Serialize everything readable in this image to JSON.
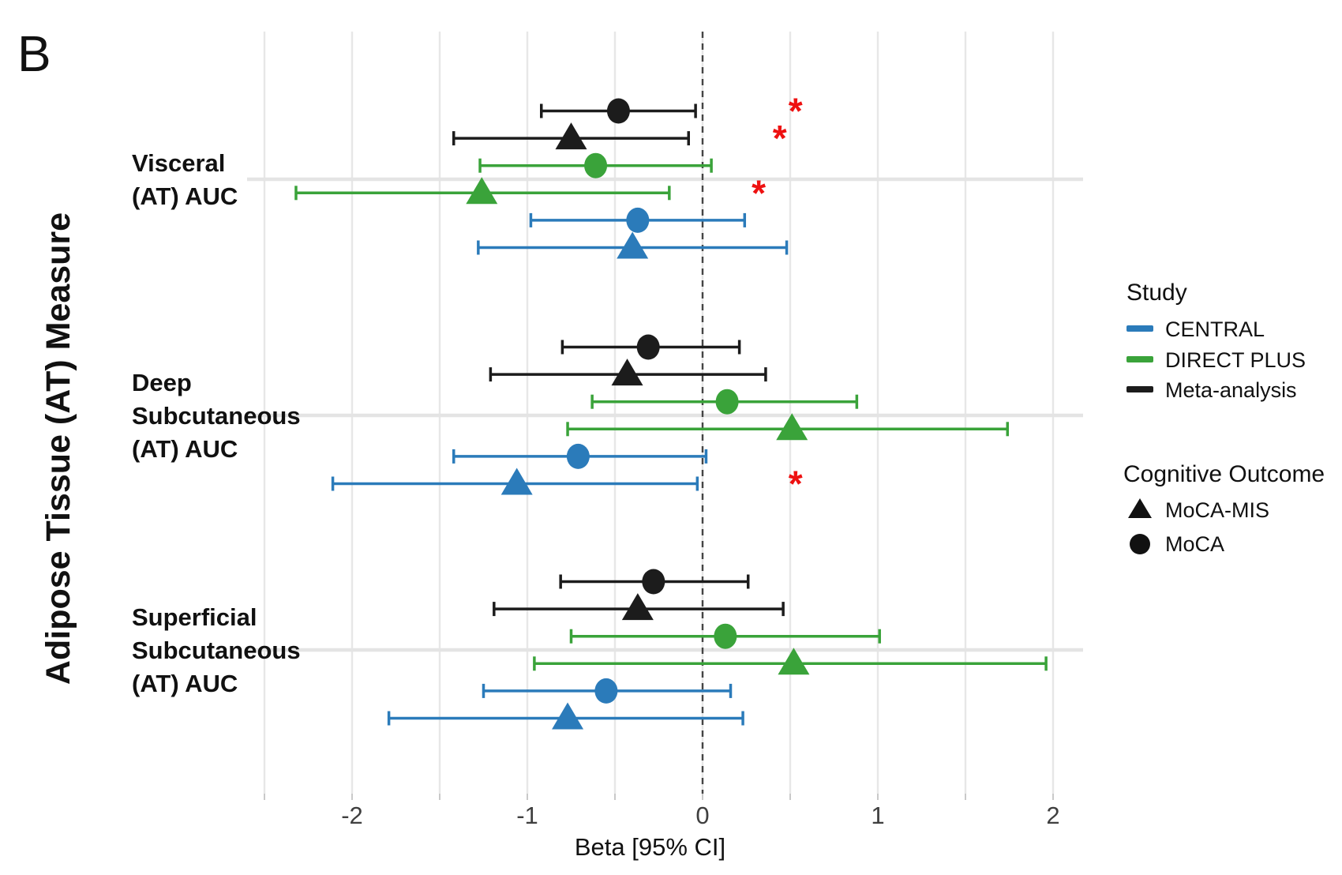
{
  "panel_label": "B",
  "significance_marker": "*",
  "colors": {
    "CENTRAL": "#2b7bba",
    "DIRECT PLUS": "#3aa33a",
    "Meta-analysis": "#1c1c1c",
    "significance": "#ee1111",
    "gridline": "#e7e7e7",
    "zero_line": "#454545",
    "tick_text": "#3f3f3f",
    "text": "#111111"
  },
  "chart_data": {
    "type": "forest",
    "xlabel": "Beta [95% CI]",
    "ylabel": "Adipose Tissue (AT) Measure",
    "xlim": [
      -2.6,
      2.17
    ],
    "x_ticks": [
      -2,
      -1,
      0,
      1,
      2
    ],
    "gridline_step": 0.5,
    "gridline_min": -2.5,
    "gridline_max": 2.0,
    "zero_line": 0,
    "legend": {
      "study_title": "Study",
      "studies": [
        {
          "name": "CENTRAL",
          "color": "#2b7bba"
        },
        {
          "name": "DIRECT PLUS",
          "color": "#3aa33a"
        },
        {
          "name": "Meta-analysis",
          "color": "#1c1c1c"
        }
      ],
      "outcome_title": "Cognitive Outcome",
      "outcomes": [
        {
          "name": "MoCA-MIS",
          "marker": "triangle"
        },
        {
          "name": "MoCA",
          "marker": "circle"
        }
      ]
    },
    "groups": [
      {
        "label_lines": [
          "Visceral",
          "(AT) AUC"
        ],
        "rows": [
          {
            "study": "Meta-analysis",
            "outcome": "MoCA",
            "beta": -0.48,
            "ci": [
              -0.92,
              -0.04
            ],
            "significant": true,
            "sig_x": 0.53
          },
          {
            "study": "Meta-analysis",
            "outcome": "MoCA-MIS",
            "beta": -0.75,
            "ci": [
              -1.42,
              -0.08
            ],
            "significant": true,
            "sig_x": 0.44
          },
          {
            "study": "DIRECT PLUS",
            "outcome": "MoCA",
            "beta": -0.61,
            "ci": [
              -1.27,
              0.05
            ],
            "significant": false
          },
          {
            "study": "DIRECT PLUS",
            "outcome": "MoCA-MIS",
            "beta": -1.26,
            "ci": [
              -2.32,
              -0.19
            ],
            "significant": true,
            "sig_x": 0.32
          },
          {
            "study": "CENTRAL",
            "outcome": "MoCA",
            "beta": -0.37,
            "ci": [
              -0.98,
              0.24
            ],
            "significant": false
          },
          {
            "study": "CENTRAL",
            "outcome": "MoCA-MIS",
            "beta": -0.4,
            "ci": [
              -1.28,
              0.48
            ],
            "significant": false
          }
        ]
      },
      {
        "label_lines": [
          "Deep",
          "Subcutaneous",
          "(AT) AUC"
        ],
        "rows": [
          {
            "study": "Meta-analysis",
            "outcome": "MoCA",
            "beta": -0.31,
            "ci": [
              -0.8,
              0.21
            ],
            "significant": false
          },
          {
            "study": "Meta-analysis",
            "outcome": "MoCA-MIS",
            "beta": -0.43,
            "ci": [
              -1.21,
              0.36
            ],
            "significant": false
          },
          {
            "study": "DIRECT PLUS",
            "outcome": "MoCA",
            "beta": 0.14,
            "ci": [
              -0.63,
              0.88
            ],
            "significant": false
          },
          {
            "study": "DIRECT PLUS",
            "outcome": "MoCA-MIS",
            "beta": 0.51,
            "ci": [
              -0.77,
              1.74
            ],
            "significant": false
          },
          {
            "study": "CENTRAL",
            "outcome": "MoCA",
            "beta": -0.71,
            "ci": [
              -1.42,
              0.02
            ],
            "significant": false
          },
          {
            "study": "CENTRAL",
            "outcome": "MoCA-MIS",
            "beta": -1.06,
            "ci": [
              -2.11,
              -0.03
            ],
            "significant": true,
            "sig_x": 0.53
          }
        ]
      },
      {
        "label_lines": [
          "Superficial",
          "Subcutaneous",
          "(AT) AUC"
        ],
        "rows": [
          {
            "study": "Meta-analysis",
            "outcome": "MoCA",
            "beta": -0.28,
            "ci": [
              -0.81,
              0.26
            ],
            "significant": false
          },
          {
            "study": "Meta-analysis",
            "outcome": "MoCA-MIS",
            "beta": -0.37,
            "ci": [
              -1.19,
              0.46
            ],
            "significant": false
          },
          {
            "study": "DIRECT PLUS",
            "outcome": "MoCA",
            "beta": 0.13,
            "ci": [
              -0.75,
              1.01
            ],
            "significant": false
          },
          {
            "study": "DIRECT PLUS",
            "outcome": "MoCA-MIS",
            "beta": 0.52,
            "ci": [
              -0.96,
              1.96
            ],
            "significant": false
          },
          {
            "study": "CENTRAL",
            "outcome": "MoCA",
            "beta": -0.55,
            "ci": [
              -1.25,
              0.16
            ],
            "significant": false
          },
          {
            "study": "CENTRAL",
            "outcome": "MoCA-MIS",
            "beta": -0.77,
            "ci": [
              -1.79,
              0.23
            ],
            "significant": false
          }
        ]
      }
    ]
  }
}
